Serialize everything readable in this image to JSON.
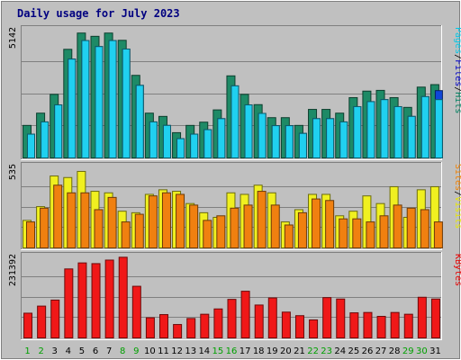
{
  "title": "Daily usage for July 2023",
  "chart_data": {
    "type": "bar",
    "title": "Daily usage for July 2023",
    "categories": [
      "1",
      "2",
      "3",
      "4",
      "5",
      "6",
      "7",
      "8",
      "9",
      "10",
      "11",
      "12",
      "13",
      "14",
      "15",
      "16",
      "17",
      "18",
      "19",
      "20",
      "21",
      "22",
      "23",
      "24",
      "25",
      "26",
      "27",
      "28",
      "29",
      "30",
      "31"
    ],
    "weekend_days": [
      "1",
      "2",
      "8",
      "9",
      "15",
      "16",
      "22",
      "23",
      "29",
      "30"
    ],
    "panels": [
      {
        "id": "hits-files-pages",
        "max_label": "5142",
        "ylim": [
          0,
          5142
        ],
        "label_parts": [
          {
            "text": "Pages",
            "color": "#00c8e8"
          },
          {
            "text": "/",
            "color": "#000000"
          },
          {
            "text": "Files",
            "color": "#0000c8"
          },
          {
            "text": "/",
            "color": "#000000"
          },
          {
            "text": "Hits",
            "color": "#008060"
          }
        ],
        "series": [
          {
            "name": "Hits",
            "color": "#1e8a66",
            "values": [
              1300,
              1790,
              2540,
              4340,
              4990,
              4860,
              4990,
              4700,
              3300,
              1790,
              1660,
              1010,
              1300,
              1430,
              1920,
              3280,
              2540,
              2130,
              1610,
              1610,
              1300,
              1940,
              1940,
              1790,
              2410,
              2670,
              2700,
              2410,
              2020,
              2830,
              2930
            ]
          },
          {
            "name": "Files",
            "color": "#0f46d8",
            "values": [
              950,
              1440,
              2120,
              3950,
              4690,
              4450,
              4690,
              4350,
              2900,
              1440,
              1300,
              770,
              950,
              1130,
              1570,
              2880,
              2120,
              1780,
              1290,
              1290,
              980,
              1570,
              1570,
              1440,
              2050,
              2250,
              2330,
              2050,
              1660,
              2450,
              2690
            ]
          },
          {
            "name": "Pages",
            "color": "#20d0f0",
            "values": [
              950,
              1440,
              2120,
              3950,
              4690,
              4450,
              4690,
              4350,
              2900,
              1440,
              1300,
              770,
              950,
              1130,
              1570,
              2880,
              2120,
              1780,
              1290,
              1290,
              980,
              1570,
              1570,
              1440,
              2050,
              2250,
              2330,
              2050,
              1660,
              2450,
              2330
            ]
          }
        ]
      },
      {
        "id": "visits-sites",
        "max_label": "535",
        "ylim": [
          0,
          535
        ],
        "label_parts": [
          {
            "text": "Sites",
            "color": "#f08000"
          },
          {
            "text": "/",
            "color": "#000000"
          },
          {
            "text": "Visits",
            "color": "#e8e800"
          }
        ],
        "series": [
          {
            "name": "Visits",
            "color": "#f0f020",
            "values": [
              180,
              270,
              470,
              460,
              500,
              370,
              360,
              240,
              230,
              350,
              380,
              370,
              290,
              230,
              200,
              360,
              350,
              410,
              360,
              170,
              250,
              350,
              350,
              210,
              240,
              340,
              290,
              400,
              200,
              380,
              400
            ]
          },
          {
            "name": "Sites",
            "color": "#f08010",
            "values": [
              170,
              260,
              410,
              360,
              360,
              250,
              330,
              170,
              220,
              340,
              360,
              350,
              280,
              180,
              210,
              260,
              280,
              370,
              280,
              150,
              230,
              320,
              310,
              190,
              190,
              170,
              210,
              280,
              260,
              250,
              170
            ]
          }
        ]
      },
      {
        "id": "kbytes",
        "max_label": "231392",
        "ylim": [
          0,
          231392
        ],
        "label_parts": [
          {
            "text": "KBytes",
            "color": "#e80000"
          }
        ],
        "series": [
          {
            "name": "KBytes",
            "color": "#f01818",
            "values": [
              70000,
              90000,
              107000,
              195000,
              212000,
              210000,
              220000,
              228000,
              146000,
              57000,
              66000,
              38000,
              55000,
              67000,
              82000,
              109000,
              132000,
              93000,
              113000,
              73000,
              63000,
              51000,
              114000,
              110000,
              71000,
              72000,
              61000,
              72000,
              67000,
              115000,
              110000
            ]
          }
        ]
      }
    ]
  }
}
